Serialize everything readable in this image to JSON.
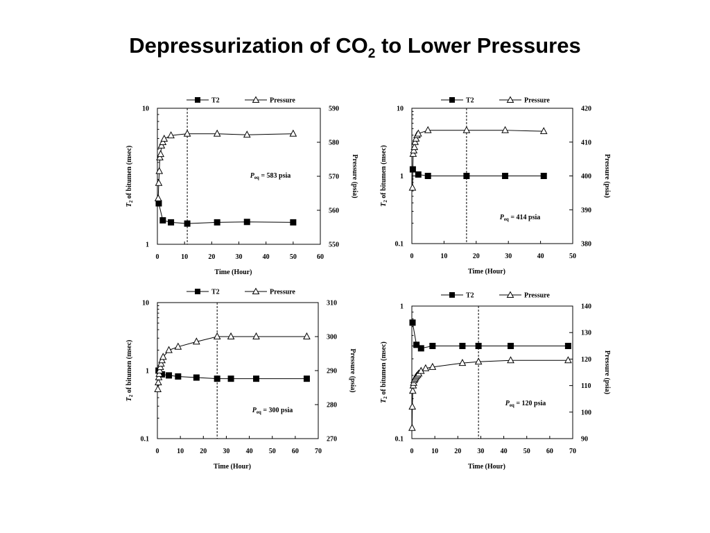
{
  "title": {
    "main": "Depressurization of CO",
    "sub": "2",
    "rest": " to Lower Pressures"
  },
  "chart_data": [
    {
      "type": "line",
      "legend": [
        "T2",
        "Pressure"
      ],
      "xlabel": "Time (Hour)",
      "ylabel_left_italic": "T",
      "ylabel_left_sub": "2",
      "ylabel_left_rest": " of bitumen (msec)",
      "ylabel_right": "Pressure (psia)",
      "annotation": {
        "p": "P",
        "sub": "eq",
        "rest": " =  583 psia"
      },
      "xlim": [
        0,
        60
      ],
      "xticks": [
        "0",
        "10",
        "20",
        "30",
        "40",
        "50",
        "60"
      ],
      "yleft_log": true,
      "yleft_lim": [
        1,
        10
      ],
      "yleft_ticks": [
        "1",
        "10"
      ],
      "yright_lim": [
        550,
        590
      ],
      "yright_ticks": [
        "550",
        "560",
        "570",
        "580",
        "590"
      ],
      "vline_x": 11,
      "series": [
        {
          "name": "T2",
          "axis": "left",
          "x": [
            0.5,
            2,
            5,
            11,
            22,
            33,
            50
          ],
          "y": [
            2.0,
            1.5,
            1.45,
            1.42,
            1.45,
            1.46,
            1.45
          ]
        },
        {
          "name": "Pressure",
          "axis": "right",
          "x": [
            0.3,
            0.5,
            0.7,
            0.9,
            1.2,
            1.5,
            2,
            2.5,
            5,
            11,
            22,
            33,
            50
          ],
          "y": [
            563.5,
            568,
            571.5,
            575.5,
            576.5,
            579,
            580,
            581,
            582,
            582.5,
            582.5,
            582.2,
            582.5
          ]
        }
      ]
    },
    {
      "type": "line",
      "legend": [
        "T2",
        "Pressure"
      ],
      "xlabel": "Time (Hour)",
      "ylabel_left_italic": "T",
      "ylabel_left_sub": "2",
      "ylabel_left_rest": " of bitumen (msec)",
      "ylabel_right": "Pressure (psia)",
      "annotation": {
        "p": "P",
        "sub": "eq",
        "rest": " = 414 psia"
      },
      "xlim": [
        0,
        50
      ],
      "xticks": [
        "0",
        "10",
        "20",
        "30",
        "40",
        "50"
      ],
      "yleft_log": true,
      "yleft_lim": [
        0.1,
        10
      ],
      "yleft_ticks": [
        "0.1",
        "1",
        "10"
      ],
      "yright_lim": [
        380,
        420
      ],
      "yright_ticks": [
        "380",
        "390",
        "400",
        "410",
        "420"
      ],
      "vline_x": 17,
      "series": [
        {
          "name": "T2",
          "axis": "left",
          "x": [
            0.3,
            2,
            5,
            17,
            29,
            41
          ],
          "y": [
            1.25,
            1.05,
            1.0,
            1.0,
            1.0,
            1.0
          ]
        },
        {
          "name": "Pressure",
          "axis": "right",
          "x": [
            0.2,
            0.4,
            0.6,
            0.8,
            1.0,
            1.3,
            1.6,
            2.0,
            5,
            17,
            29,
            41
          ],
          "y": [
            396.5,
            406.5,
            407.5,
            408.5,
            410,
            411,
            412,
            412.5,
            413.5,
            413.5,
            413.5,
            413.2
          ]
        }
      ]
    },
    {
      "type": "line",
      "legend": [
        "T2",
        "Pressure"
      ],
      "xlabel": "Time (Hour)",
      "ylabel_left_italic": "T",
      "ylabel_left_sub": "2",
      "ylabel_left_rest": " of bitumen (msec)",
      "ylabel_right": "Pressure (psia)",
      "annotation": {
        "p": "P",
        "sub": "eq",
        "rest": " = 300 psia"
      },
      "xlim": [
        0,
        70
      ],
      "xticks": [
        "0",
        "10",
        "20",
        "30",
        "40",
        "50",
        "60",
        "70"
      ],
      "yleft_log": true,
      "yleft_lim": [
        0.1,
        10
      ],
      "yleft_ticks": [
        "0.1",
        "1",
        "10"
      ],
      "yright_lim": [
        270,
        310
      ],
      "yright_ticks": [
        "270",
        "280",
        "290",
        "300",
        "310"
      ],
      "vline_x": 26,
      "series": [
        {
          "name": "T2",
          "axis": "left",
          "x": [
            0.5,
            2,
            5,
            9,
            17,
            26,
            32,
            43,
            65
          ],
          "y": [
            1.0,
            0.88,
            0.85,
            0.82,
            0.79,
            0.76,
            0.76,
            0.76,
            0.76
          ]
        },
        {
          "name": "Pressure",
          "axis": "right",
          "x": [
            0.2,
            0.4,
            0.6,
            0.8,
            1.0,
            1.3,
            1.6,
            2.0,
            2.5,
            5,
            9,
            17,
            26,
            32,
            43,
            65
          ],
          "y": [
            284.5,
            286.5,
            288,
            289,
            290,
            291,
            292,
            293,
            294,
            296,
            297,
            298.5,
            300,
            300,
            300,
            300
          ]
        }
      ]
    },
    {
      "type": "line",
      "legend": [
        "T2",
        "Pressure"
      ],
      "xlabel": "Time (Hour)",
      "ylabel_left_italic": "T",
      "ylabel_left_sub": "2",
      "ylabel_left_rest": " of bitumen (msec)",
      "ylabel_right": "Pressure (psia)",
      "annotation": {
        "p": "P",
        "sub": "eq",
        "rest": " = 120 psia"
      },
      "xlim": [
        0,
        70
      ],
      "xticks": [
        "0",
        "10",
        "20",
        "30",
        "40",
        "50",
        "60",
        "70"
      ],
      "yleft_log": true,
      "yleft_lim": [
        0.1,
        1
      ],
      "yleft_ticks": [
        "0.1",
        "1"
      ],
      "yright_lim": [
        90,
        140
      ],
      "yright_ticks": [
        "90",
        "100",
        "110",
        "120",
        "130",
        "140"
      ],
      "vline_x": 29,
      "series": [
        {
          "name": "T2",
          "axis": "left",
          "x": [
            0.3,
            2,
            4,
            9,
            22,
            29,
            43,
            68
          ],
          "y": [
            0.75,
            0.51,
            0.48,
            0.5,
            0.5,
            0.5,
            0.5,
            0.5
          ]
        },
        {
          "name": "Pressure",
          "axis": "right",
          "x": [
            0.1,
            0.2,
            0.4,
            0.6,
            0.8,
            1.0,
            1.3,
            1.6,
            2.0,
            2.5,
            3,
            4,
            6,
            9,
            22,
            29,
            43,
            68
          ],
          "y": [
            94,
            102,
            108,
            110,
            111,
            112,
            112.5,
            113,
            113.5,
            114,
            114.5,
            115.5,
            116.5,
            117,
            118.5,
            119,
            119.5,
            119.5
          ]
        }
      ]
    }
  ]
}
